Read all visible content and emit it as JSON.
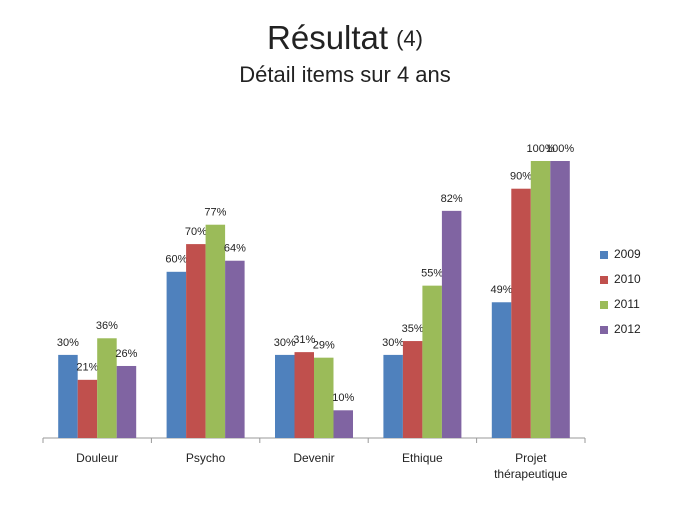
{
  "chart_data": {
    "type": "bar",
    "title": "Résultat",
    "title_note": "(4)",
    "subtitle": "Détail items sur 4 ans",
    "categories": [
      "Douleur",
      "Psycho",
      "Devenir",
      "Ethique",
      "Projet thérapeutique"
    ],
    "series": [
      {
        "name": "2009",
        "color": "#4f81bd",
        "values": [
          30,
          60,
          30,
          30,
          49
        ],
        "value_labels": [
          "30%",
          "60%",
          "30%",
          "30%",
          "49%"
        ]
      },
      {
        "name": "2010",
        "color": "#c0504d",
        "values": [
          21,
          70,
          31,
          35,
          90
        ],
        "value_labels": [
          "21%",
          "70%",
          "31%",
          "35%",
          "90%"
        ]
      },
      {
        "name": "2011",
        "color": "#9bbb59",
        "values": [
          36,
          77,
          29,
          55,
          100
        ],
        "value_labels": [
          "36%",
          "77%",
          "29%",
          "55%",
          "100%"
        ]
      },
      {
        "name": "2012",
        "color": "#8064a2",
        "values": [
          26,
          64,
          10,
          82,
          100
        ],
        "value_labels": [
          "26%",
          "64%",
          "10%",
          "82%",
          "100%"
        ]
      }
    ],
    "ylim": [
      0,
      100
    ],
    "legend": "right"
  }
}
